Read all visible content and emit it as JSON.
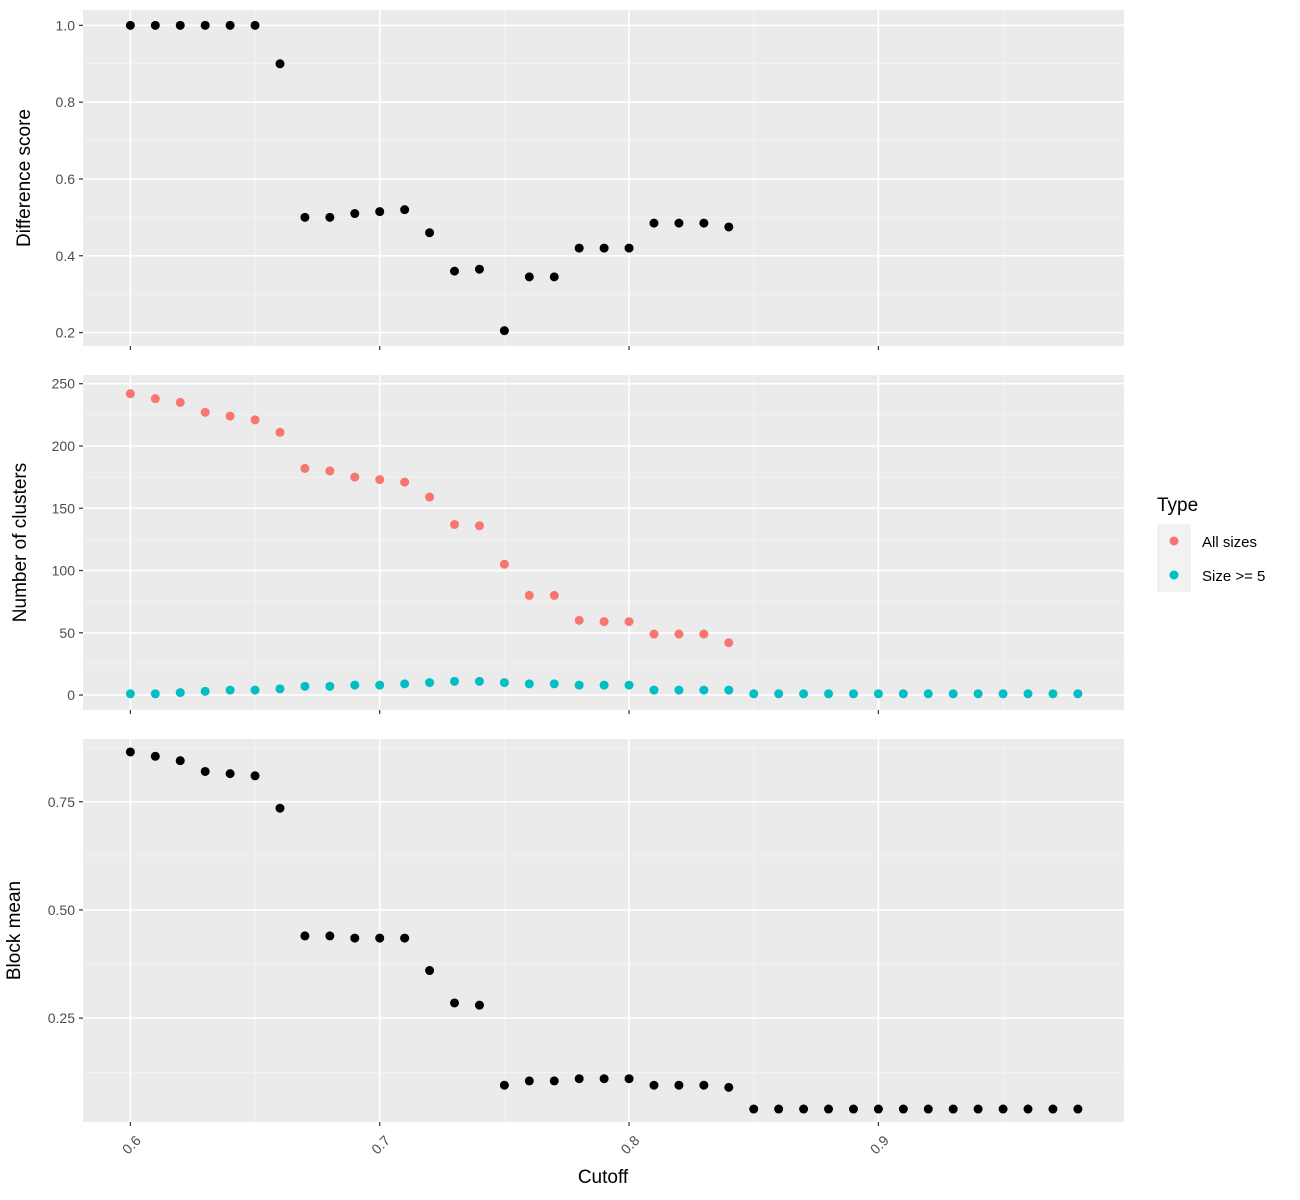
{
  "chart_data": {
    "type": "scatter",
    "xlabel": "Cutoff",
    "xlim": [
      0.581,
      0.9985
    ],
    "xticks": [
      0.6,
      0.7,
      0.8,
      0.9
    ],
    "xtick_labels": [
      "0.6",
      "0.7",
      "0.8",
      "0.9"
    ],
    "grid": true,
    "legend_position": "right",
    "legend": {
      "title": "Type",
      "entries": [
        {
          "label": "All sizes",
          "color": "#F8766D"
        },
        {
          "label": "Size >= 5",
          "color": "#00BFC4"
        }
      ]
    },
    "panels": [
      {
        "ylabel": "Difference score",
        "ylim": [
          0.165,
          1.04
        ],
        "yticks": [
          0.2,
          0.4,
          0.6,
          0.8,
          1.0
        ],
        "ytick_labels": [
          "0.2",
          "0.4",
          "0.6",
          "0.8",
          "1.0"
        ],
        "series": [
          {
            "color": "#000000",
            "x": [
              0.6,
              0.61,
              0.62,
              0.63,
              0.64,
              0.65,
              0.66,
              0.67,
              0.68,
              0.69,
              0.7,
              0.71,
              0.72,
              0.73,
              0.74,
              0.75,
              0.76,
              0.77,
              0.78,
              0.79,
              0.8,
              0.81,
              0.82,
              0.83,
              0.84
            ],
            "y": [
              1.0,
              1.0,
              1.0,
              1.0,
              1.0,
              1.0,
              0.9,
              0.5,
              0.5,
              0.51,
              0.515,
              0.52,
              0.46,
              0.36,
              0.365,
              0.205,
              0.345,
              0.345,
              0.42,
              0.42,
              0.42,
              0.485,
              0.485,
              0.485,
              0.475
            ]
          }
        ]
      },
      {
        "ylabel": "Number of clusters",
        "ylim": [
          -12,
          257
        ],
        "yticks": [
          0,
          50,
          100,
          150,
          200,
          250
        ],
        "ytick_labels": [
          "0",
          "50",
          "100",
          "150",
          "200",
          "250"
        ],
        "series": [
          {
            "name": "All sizes",
            "color": "#F8766D",
            "x": [
              0.6,
              0.61,
              0.62,
              0.63,
              0.64,
              0.65,
              0.66,
              0.67,
              0.68,
              0.69,
              0.7,
              0.71,
              0.72,
              0.73,
              0.74,
              0.75,
              0.76,
              0.77,
              0.78,
              0.79,
              0.8,
              0.81,
              0.82,
              0.83,
              0.84
            ],
            "y": [
              242,
              238,
              235,
              227,
              224,
              221,
              211,
              182,
              180,
              175,
              173,
              171,
              159,
              137,
              136,
              105,
              80,
              80,
              60,
              59,
              59,
              49,
              49,
              49,
              42
            ]
          },
          {
            "name": "Size >= 5",
            "color": "#00BFC4",
            "x": [
              0.6,
              0.61,
              0.62,
              0.63,
              0.64,
              0.65,
              0.66,
              0.67,
              0.68,
              0.69,
              0.7,
              0.71,
              0.72,
              0.73,
              0.74,
              0.75,
              0.76,
              0.77,
              0.78,
              0.79,
              0.8,
              0.81,
              0.82,
              0.83,
              0.84,
              0.85,
              0.86,
              0.87,
              0.88,
              0.89,
              0.9,
              0.91,
              0.92,
              0.93,
              0.94,
              0.95,
              0.96,
              0.97,
              0.98
            ],
            "y": [
              1,
              1,
              2,
              3,
              4,
              4,
              5,
              7,
              7,
              8,
              8,
              9,
              10,
              11,
              11,
              10,
              9,
              9,
              8,
              8,
              8,
              4,
              4,
              4,
              4,
              1,
              1,
              1,
              1,
              1,
              1,
              1,
              1,
              1,
              1,
              1,
              1,
              1,
              1
            ]
          }
        ]
      },
      {
        "ylabel": "Block mean",
        "ylim": [
          0.01,
          0.895
        ],
        "yticks": [
          0.25,
          0.5,
          0.75
        ],
        "ytick_labels": [
          "0.25",
          "0.50",
          "0.75"
        ],
        "series": [
          {
            "color": "#000000",
            "x": [
              0.6,
              0.61,
              0.62,
              0.63,
              0.64,
              0.65,
              0.66,
              0.67,
              0.68,
              0.69,
              0.7,
              0.71,
              0.72,
              0.73,
              0.74,
              0.75,
              0.76,
              0.77,
              0.78,
              0.79,
              0.8,
              0.81,
              0.82,
              0.83,
              0.84,
              0.85,
              0.86,
              0.87,
              0.88,
              0.89,
              0.9,
              0.91,
              0.92,
              0.93,
              0.94,
              0.95,
              0.96,
              0.97,
              0.98
            ],
            "y": [
              0.865,
              0.855,
              0.845,
              0.82,
              0.815,
              0.81,
              0.735,
              0.44,
              0.44,
              0.435,
              0.435,
              0.435,
              0.36,
              0.285,
              0.28,
              0.095,
              0.105,
              0.105,
              0.11,
              0.11,
              0.11,
              0.095,
              0.095,
              0.095,
              0.09,
              0.04,
              0.04,
              0.04,
              0.04,
              0.04,
              0.04,
              0.04,
              0.04,
              0.04,
              0.04,
              0.04,
              0.04,
              0.04,
              0.04
            ]
          }
        ]
      }
    ]
  }
}
